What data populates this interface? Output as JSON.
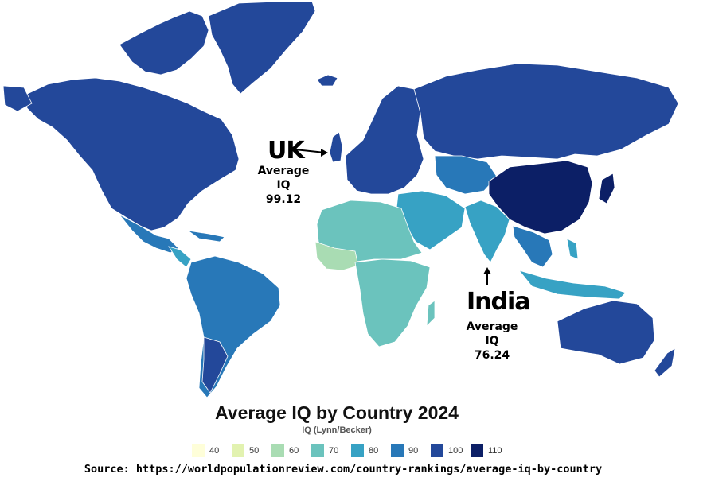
{
  "map": {
    "title": "Average IQ by Country 2024",
    "subtitle": "IQ (Lynn/Becker)",
    "legend": [
      {
        "label": "40",
        "color": "#fefed9"
      },
      {
        "label": "50",
        "color": "#e2f2b0"
      },
      {
        "label": "60",
        "color": "#a9dcb3"
      },
      {
        "label": "70",
        "color": "#6bc3bd"
      },
      {
        "label": "80",
        "color": "#37a2c4"
      },
      {
        "label": "90",
        "color": "#2878b8"
      },
      {
        "label": "100",
        "color": "#23489a"
      },
      {
        "label": "110",
        "color": "#0c1f66"
      }
    ],
    "annotations": {
      "uk": {
        "name": "UK",
        "caption": "Average IQ",
        "value": "99.12"
      },
      "india": {
        "name": "India",
        "caption": "Average IQ",
        "value": "76.24"
      }
    },
    "source": "Source: https://worldpopulationreview.com/country-rankings/average-iq-by-country"
  }
}
